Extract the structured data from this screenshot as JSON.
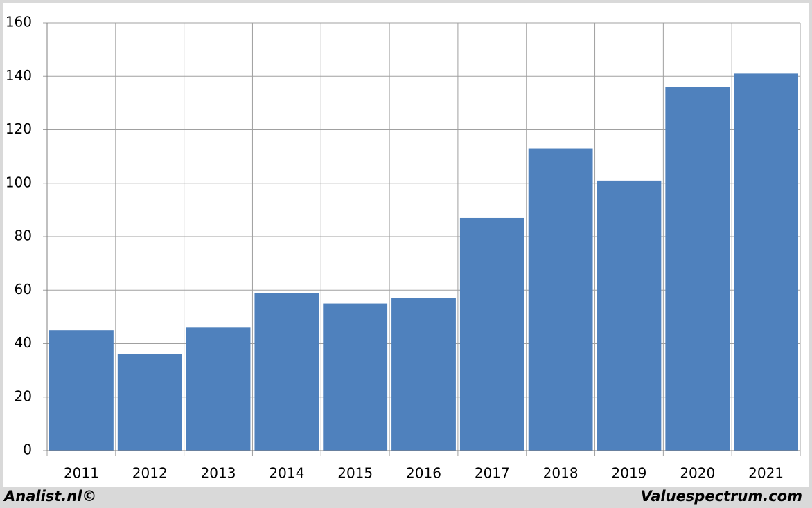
{
  "chart_data": {
    "type": "bar",
    "categories": [
      "2011",
      "2012",
      "2013",
      "2014",
      "2015",
      "2016",
      "2017",
      "2018",
      "2019",
      "2020",
      "2021"
    ],
    "values": [
      45,
      36,
      46,
      59,
      55,
      57,
      87,
      113,
      101,
      136,
      141
    ],
    "color": "#4f81bd",
    "ylim": [
      0,
      160
    ],
    "yticks": [
      0,
      20,
      40,
      60,
      80,
      100,
      120,
      140,
      160
    ],
    "grid": true,
    "annotations": [
      "Analist.nl©",
      "Valuespectrum.com"
    ]
  }
}
